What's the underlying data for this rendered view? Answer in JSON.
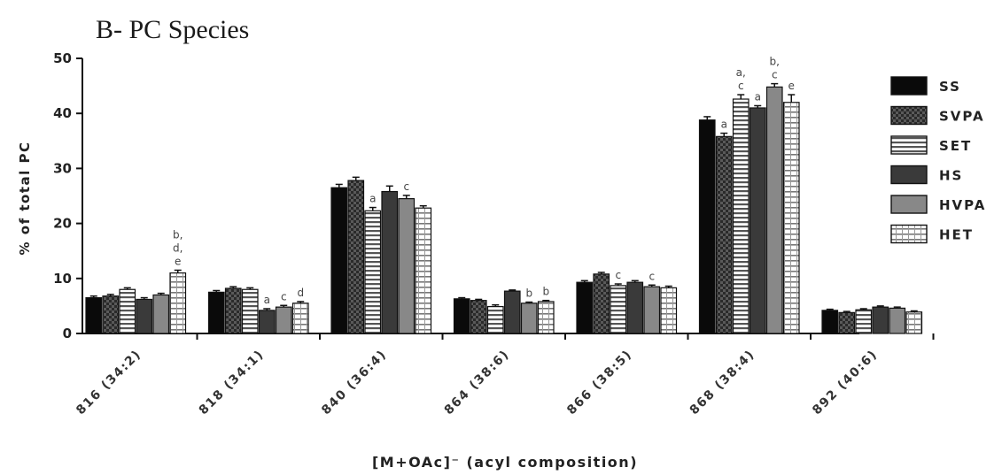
{
  "chart_data": {
    "type": "bar",
    "title": "B-   PC Species",
    "xlabel": "[M+OAc]⁻ (acyl composition)",
    "ylabel": "% of total PC",
    "ylim": [
      0,
      50
    ],
    "yticks": [
      0,
      10,
      20,
      30,
      40,
      50
    ],
    "legend_position": "right",
    "grid": false,
    "categories": [
      "816 (34:2)",
      "818 (34:1)",
      "840 (36:4)",
      "864 (38:6)",
      "866 (38:5)",
      "868 (38:4)",
      "892 (40:6)"
    ],
    "series": [
      {
        "name": "SS",
        "color": "#0a0a0a",
        "pattern": "solid",
        "values": [
          6.5,
          7.5,
          26.5,
          6.3,
          9.3,
          38.8,
          4.2
        ],
        "errors": [
          0.3,
          0.3,
          0.6,
          0.2,
          0.3,
          0.6,
          0.2
        ]
      },
      {
        "name": "SVPA",
        "color": "#505050",
        "pattern": "checker",
        "values": [
          6.8,
          8.2,
          27.8,
          6.0,
          10.8,
          35.8,
          3.8
        ],
        "errors": [
          0.3,
          0.3,
          0.6,
          0.2,
          0.3,
          0.6,
          0.2
        ]
      },
      {
        "name": "SET",
        "color": "#bdbdbd",
        "pattern": "hlines",
        "values": [
          8.0,
          8.0,
          22.3,
          4.9,
          8.7,
          42.6,
          4.3
        ],
        "errors": [
          0.3,
          0.3,
          0.6,
          0.3,
          0.3,
          0.8,
          0.2
        ]
      },
      {
        "name": "HS",
        "color": "#3a3a3a",
        "pattern": "solid",
        "values": [
          6.2,
          4.2,
          25.8,
          7.7,
          9.3,
          41.0,
          4.8
        ],
        "errors": [
          0.3,
          0.3,
          1.0,
          0.2,
          0.3,
          0.4,
          0.2
        ]
      },
      {
        "name": "HVPA",
        "color": "#888888",
        "pattern": "solid",
        "values": [
          7.0,
          4.8,
          24.5,
          5.5,
          8.5,
          44.8,
          4.6
        ],
        "errors": [
          0.3,
          0.3,
          0.6,
          0.2,
          0.3,
          0.6,
          0.2
        ]
      },
      {
        "name": "HET",
        "color": "#e6e6e6",
        "pattern": "grid",
        "values": [
          11.0,
          5.5,
          22.8,
          5.8,
          8.3,
          42.0,
          3.9
        ],
        "errors": [
          0.5,
          0.3,
          0.4,
          0.2,
          0.3,
          1.4,
          0.2
        ]
      }
    ],
    "annotations": [
      {
        "category": 0,
        "series": 5,
        "text": "b,\nd,\ne"
      },
      {
        "category": 1,
        "series": 3,
        "text": "a"
      },
      {
        "category": 1,
        "series": 4,
        "text": "c"
      },
      {
        "category": 1,
        "series": 5,
        "text": "d"
      },
      {
        "category": 2,
        "series": 2,
        "text": "a"
      },
      {
        "category": 2,
        "series": 4,
        "text": "c"
      },
      {
        "category": 3,
        "series": 4,
        "text": "b"
      },
      {
        "category": 3,
        "series": 5,
        "text": "b"
      },
      {
        "category": 4,
        "series": 2,
        "text": "c"
      },
      {
        "category": 4,
        "series": 4,
        "text": "c"
      },
      {
        "category": 5,
        "series": 1,
        "text": "a"
      },
      {
        "category": 5,
        "series": 2,
        "text": "a,\nc"
      },
      {
        "category": 5,
        "series": 3,
        "text": "a"
      },
      {
        "category": 5,
        "series": 4,
        "text": "b,\nc"
      },
      {
        "category": 5,
        "series": 5,
        "text": "e"
      }
    ]
  }
}
